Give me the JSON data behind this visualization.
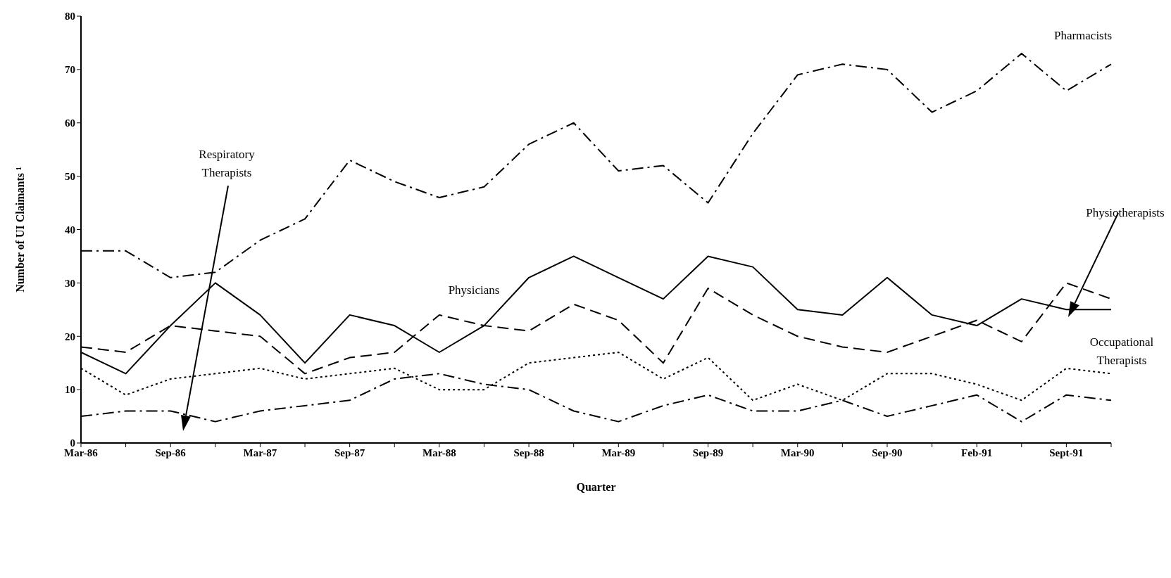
{
  "chart_data": {
    "type": "line",
    "xlabel": "Quarter",
    "ylabel": "Number of UI Claimants ¹",
    "categories": [
      "Mar-86",
      null,
      "Sep-86",
      null,
      "Mar-87",
      null,
      "Sep-87",
      null,
      "Mar-88",
      null,
      "Sep-88",
      null,
      "Mar-89",
      null,
      "Sep-89",
      null,
      "Mar-90",
      null,
      "Sep-90",
      null,
      "Feb-91",
      null,
      "Sept-91",
      null
    ],
    "ylim": [
      0,
      80
    ],
    "yticks": [
      0,
      10,
      20,
      30,
      40,
      50,
      60,
      70,
      80
    ],
    "grid": false,
    "legend": false,
    "marker": "none",
    "series": [
      {
        "name": "Pharmacists",
        "color": "#000000",
        "line_style": "dashdot",
        "values": [
          36,
          36,
          31,
          32,
          38,
          42,
          53,
          49,
          46,
          48,
          56,
          60,
          51,
          52,
          45,
          58,
          69,
          71,
          70,
          62,
          66,
          73,
          66,
          71
        ]
      },
      {
        "name": "Physicians",
        "color": "#000000",
        "line_style": "solid",
        "values": [
          17,
          13,
          22,
          30,
          24,
          15,
          24,
          22,
          17,
          22,
          31,
          35,
          31,
          27,
          35,
          33,
          25,
          24,
          31,
          24,
          22,
          27,
          25,
          25
        ]
      },
      {
        "name": "Physiotherapists",
        "color": "#000000",
        "line_style": "dashed",
        "values": [
          18,
          17,
          22,
          21,
          20,
          13,
          16,
          17,
          24,
          22,
          21,
          26,
          23,
          15,
          29,
          24,
          20,
          18,
          17,
          20,
          23,
          19,
          30,
          27
        ]
      },
      {
        "name": "Occupational Therapists",
        "color": "#000000",
        "line_style": "dotted",
        "values": [
          14,
          9,
          12,
          13,
          14,
          12,
          13,
          14,
          10,
          10,
          15,
          16,
          17,
          12,
          16,
          8,
          11,
          8,
          13,
          13,
          11,
          8,
          14,
          13
        ]
      },
      {
        "name": "Respiratory Therapists",
        "color": "#000000",
        "line_style": "dashdot",
        "values": [
          5,
          6,
          6,
          4,
          6,
          7,
          8,
          12,
          13,
          11,
          10,
          6,
          4,
          7,
          9,
          6,
          6,
          8,
          5,
          7,
          9,
          4,
          9,
          8
        ]
      }
    ]
  }
}
